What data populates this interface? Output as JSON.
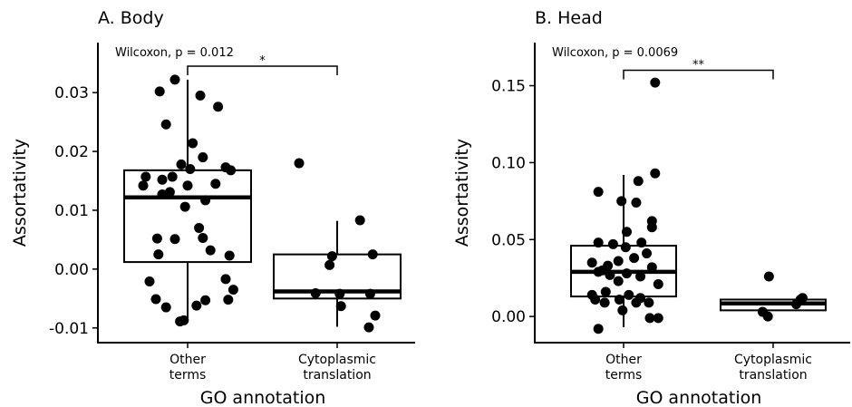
{
  "chart_data": [
    {
      "type": "boxplot",
      "title": "A. Body",
      "xlabel": "GO annotation",
      "ylabel": "Assortativity",
      "ylim": [
        -0.0125,
        0.0385
      ],
      "yticks": [
        -0.01,
        0.0,
        0.01,
        0.02,
        0.03
      ],
      "ytick_labels": [
        "-0.01",
        "0.00",
        "0.01",
        "0.02",
        "0.03"
      ],
      "categories": [
        {
          "label_line1": "Other",
          "label_line2": "terms"
        },
        {
          "label_line1": "Cytoplasmic",
          "label_line2": "translation"
        }
      ],
      "boxes": [
        {
          "whisker_low": -0.0085,
          "q1": 0.0012,
          "median": 0.0122,
          "q3": 0.0168,
          "whisker_high": 0.0322
        },
        {
          "whisker_low": -0.0098,
          "q1": -0.005,
          "median": -0.0038,
          "q3": 0.0025,
          "whisker_high": 0.0082
        }
      ],
      "points": [
        [
          [
            -0.22,
            0.0302
          ],
          [
            -0.1,
            0.0322
          ],
          [
            0.1,
            0.0295
          ],
          [
            0.24,
            0.0276
          ],
          [
            -0.17,
            0.0246
          ],
          [
            0.04,
            0.0214
          ],
          [
            0.12,
            0.019
          ],
          [
            -0.05,
            0.0178
          ],
          [
            0.02,
            0.017
          ],
          [
            0.3,
            0.0173
          ],
          [
            0.34,
            0.0168
          ],
          [
            -0.33,
            0.0157
          ],
          [
            -0.2,
            0.0152
          ],
          [
            -0.12,
            0.0157
          ],
          [
            0.22,
            0.0145
          ],
          [
            -0.35,
            0.0142
          ],
          [
            0.0,
            0.0142
          ],
          [
            -0.14,
            0.0131
          ],
          [
            -0.2,
            0.0127
          ],
          [
            0.14,
            0.0117
          ],
          [
            -0.02,
            0.0106
          ],
          [
            0.09,
            0.007
          ],
          [
            -0.24,
            0.0052
          ],
          [
            -0.1,
            0.0051
          ],
          [
            0.12,
            0.0053
          ],
          [
            0.18,
            0.0032
          ],
          [
            -0.23,
            0.0025
          ],
          [
            0.33,
            0.0023
          ],
          [
            -0.3,
            -0.0021
          ],
          [
            0.3,
            -0.0017
          ],
          [
            0.36,
            -0.0035
          ],
          [
            -0.25,
            -0.0051
          ],
          [
            0.14,
            -0.0053
          ],
          [
            0.32,
            -0.0052
          ],
          [
            -0.17,
            -0.0065
          ],
          [
            0.07,
            -0.0062
          ],
          [
            -0.03,
            -0.0087
          ],
          [
            -0.06,
            -0.0089
          ]
        ],
        [
          [
            -0.3,
            0.018
          ],
          [
            0.18,
            0.0083
          ],
          [
            -0.04,
            0.0022
          ],
          [
            0.28,
            0.0025
          ],
          [
            -0.06,
            0.0007
          ],
          [
            -0.17,
            -0.0041
          ],
          [
            0.02,
            -0.0042
          ],
          [
            0.26,
            -0.0042
          ],
          [
            0.03,
            -0.0063
          ],
          [
            0.3,
            -0.0079
          ],
          [
            0.25,
            -0.0099
          ]
        ]
      ],
      "test_label": "Wilcoxon, p = 0.012",
      "significance": "*",
      "bracket_y": 0.0345
    },
    {
      "type": "boxplot",
      "title": "B. Head",
      "xlabel": "GO annotation",
      "ylabel": "Assortativity",
      "ylim": [
        -0.017,
        0.178
      ],
      "yticks": [
        0.0,
        0.05,
        0.1,
        0.15
      ],
      "ytick_labels": [
        "0.00",
        "0.05",
        "0.10",
        "0.15"
      ],
      "categories": [
        {
          "label_line1": "Other",
          "label_line2": "terms"
        },
        {
          "label_line1": "Cytoplasmic",
          "label_line2": "translation"
        }
      ],
      "boxes": [
        {
          "whisker_low": -0.007,
          "q1": 0.013,
          "median": 0.029,
          "q3": 0.046,
          "whisker_high": 0.092
        },
        {
          "whisker_low": 0.004,
          "q1": 0.004,
          "median": 0.0085,
          "q3": 0.011,
          "whisker_high": 0.011
        }
      ],
      "points": [
        [
          [
            0.3,
            0.152
          ],
          [
            0.3,
            0.093
          ],
          [
            -0.24,
            0.081
          ],
          [
            0.14,
            0.088
          ],
          [
            -0.02,
            0.075
          ],
          [
            0.12,
            0.074
          ],
          [
            0.27,
            0.062
          ],
          [
            0.27,
            0.058
          ],
          [
            0.03,
            0.055
          ],
          [
            -0.24,
            0.048
          ],
          [
            -0.1,
            0.047
          ],
          [
            0.17,
            0.048
          ],
          [
            0.02,
            0.045
          ],
          [
            0.22,
            0.041
          ],
          [
            0.1,
            0.038
          ],
          [
            -0.05,
            0.036
          ],
          [
            -0.3,
            0.035
          ],
          [
            -0.15,
            0.033
          ],
          [
            0.27,
            0.032
          ],
          [
            -0.2,
            0.03
          ],
          [
            -0.24,
            0.029
          ],
          [
            0.03,
            0.028
          ],
          [
            -0.13,
            0.027
          ],
          [
            0.16,
            0.026
          ],
          [
            -0.05,
            0.023
          ],
          [
            0.33,
            0.021
          ],
          [
            -0.17,
            0.016
          ],
          [
            -0.3,
            0.014
          ],
          [
            0.05,
            0.014
          ],
          [
            -0.27,
            0.011
          ],
          [
            -0.04,
            0.011
          ],
          [
            0.16,
            0.012
          ],
          [
            -0.18,
            0.009
          ],
          [
            0.12,
            0.009
          ],
          [
            0.24,
            0.009
          ],
          [
            -0.01,
            0.004
          ],
          [
            0.25,
            -0.001
          ],
          [
            0.33,
            -0.001
          ],
          [
            -0.24,
            -0.008
          ]
        ],
        [
          [
            -0.04,
            0.026
          ],
          [
            -0.1,
            0.003
          ],
          [
            -0.05,
            0.0
          ],
          [
            0.22,
            0.008
          ],
          [
            0.26,
            0.011
          ],
          [
            0.28,
            0.012
          ]
        ]
      ],
      "test_label": "Wilcoxon, p = 0.0069",
      "significance": "**",
      "bracket_y": 0.16
    }
  ]
}
